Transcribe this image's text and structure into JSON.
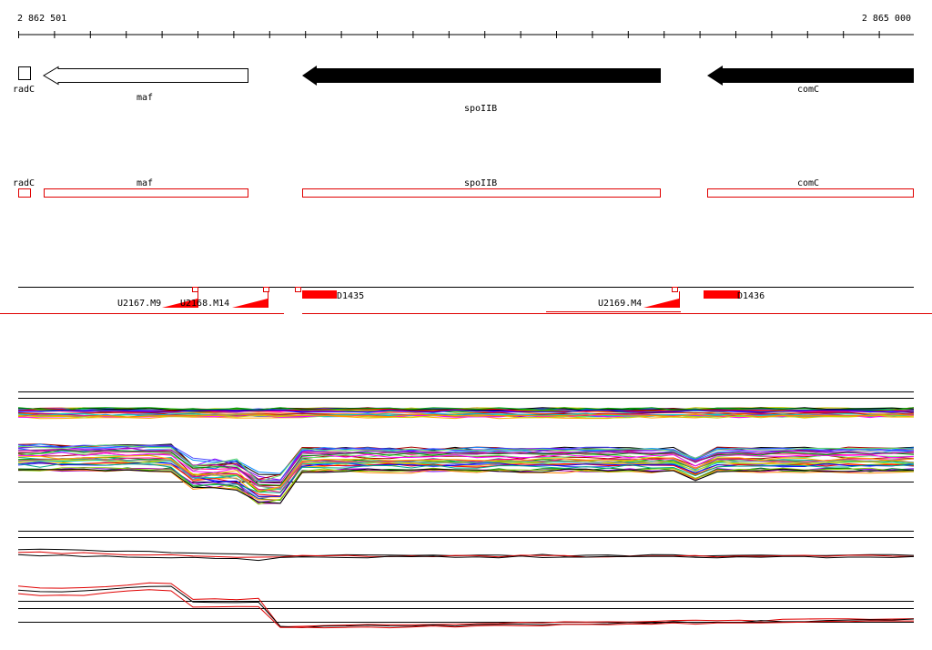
{
  "ruler": {
    "start_label": "2 862 501",
    "end_label": "2 865 000"
  },
  "genes": [
    {
      "name": "radC",
      "style": "box",
      "strand": "none"
    },
    {
      "name": "maf",
      "style": "open",
      "strand": "-"
    },
    {
      "name": "spoIIB",
      "style": "solid",
      "strand": "-"
    },
    {
      "name": "comC",
      "style": "solid",
      "strand": "-"
    }
  ],
  "cds_track": [
    {
      "name": "radC"
    },
    {
      "name": "maf"
    },
    {
      "name": "spoIIB"
    },
    {
      "name": "comC"
    }
  ],
  "features": [
    {
      "label": "U2167.M9"
    },
    {
      "label": "U2168.M14"
    },
    {
      "label": "D1435"
    },
    {
      "label": "U2169.M4"
    },
    {
      "label": "D1436"
    }
  ],
  "colors": {
    "axis": "#000000",
    "gene_fill_solid": "#000000",
    "cds_outline": "#e00000",
    "feature": "#ff0000"
  },
  "expression_panels": [
    {
      "name": "upper",
      "profile_count": 60
    },
    {
      "name": "lower",
      "profile_count": 6
    }
  ]
}
